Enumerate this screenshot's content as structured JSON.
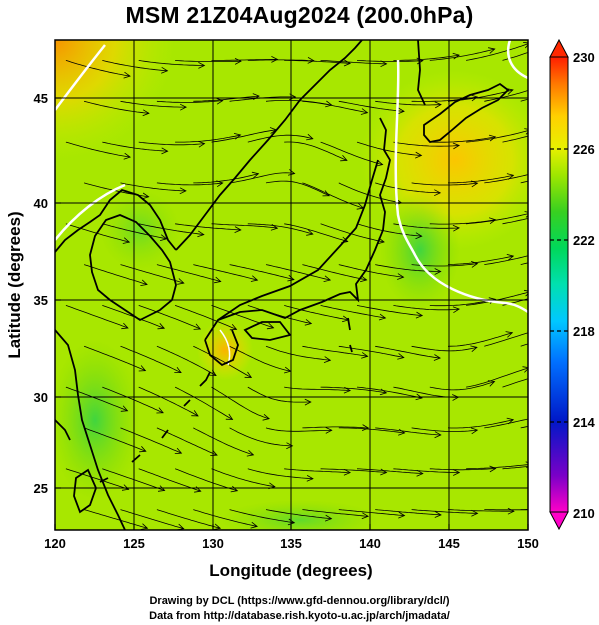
{
  "title": "MSM 21Z04Aug2024 (200.0hPa)",
  "x_axis": {
    "label": "Longitude (degrees)",
    "ticks": [
      "120",
      "125",
      "130",
      "135",
      "140",
      "145",
      "150"
    ]
  },
  "y_axis": {
    "label": "Latitude  (degrees)",
    "ticks": [
      "25",
      "30",
      "35",
      "40",
      "45"
    ]
  },
  "colorbar": {
    "labels": [
      "230",
      "226",
      "222",
      "218",
      "214",
      "210"
    ],
    "min": 210,
    "max": 230,
    "colors": [
      "#ff00c8",
      "#3a00b0",
      "#0026e6",
      "#0094ff",
      "#00e6e0",
      "#00d890",
      "#1ec832",
      "#7ad800",
      "#c8f000",
      "#ffe000",
      "#ff9a00",
      "#ff2800"
    ]
  },
  "credits": {
    "line1": "Drawing by DCL (https://www.gfd-dennou.org/library/dcl/)",
    "line2": "Data from http://database.rish.kyoto-u.ac.jp/arch/jmadata/"
  }
}
